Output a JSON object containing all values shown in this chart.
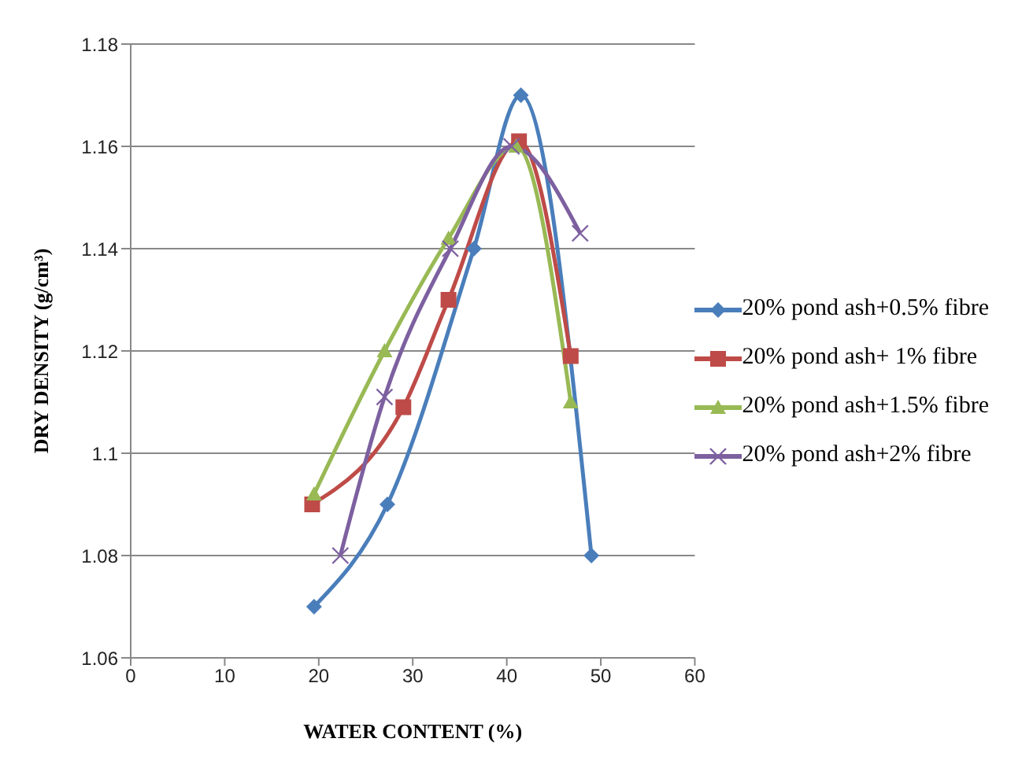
{
  "chart_data": {
    "type": "line",
    "xlabel": "WATER CONTENT (%)",
    "ylabel": "DRY DENSITY (g/cm³)",
    "xlim": [
      0,
      60
    ],
    "xticks": [
      0,
      10,
      20,
      30,
      40,
      50,
      60
    ],
    "ylim": [
      1.06,
      1.18
    ],
    "yticks": [
      1.06,
      1.08,
      1.1,
      1.12,
      1.14,
      1.16,
      1.18
    ],
    "grid": "y",
    "legend": "right",
    "series": [
      {
        "name": "20% pond ash+0.5% fibre",
        "color": "#4a7ebb",
        "marker": "diamond",
        "x": [
          19.5,
          27.3,
          36.5,
          41.5,
          49
        ],
        "values": [
          1.07,
          1.09,
          1.14,
          1.17,
          1.08
        ]
      },
      {
        "name": "20% pond ash+ 1% fibre",
        "color": "#be4b48",
        "marker": "square",
        "x": [
          19.3,
          29,
          33.8,
          41.3,
          46.8
        ],
        "values": [
          1.09,
          1.109,
          1.13,
          1.161,
          1.119
        ]
      },
      {
        "name": "20% pond ash+1.5% fibre",
        "color": "#98b954",
        "marker": "triangle",
        "x": [
          19.5,
          27,
          33.8,
          41,
          46.8
        ],
        "values": [
          1.092,
          1.12,
          1.142,
          1.16,
          1.11
        ]
      },
      {
        "name": "20% pond ash+2% fibre",
        "color": "#7d60a0",
        "marker": "cross",
        "x": [
          22.3,
          27,
          34,
          40.5,
          47.8
        ],
        "values": [
          1.08,
          1.111,
          1.14,
          1.16,
          1.143
        ]
      }
    ]
  }
}
